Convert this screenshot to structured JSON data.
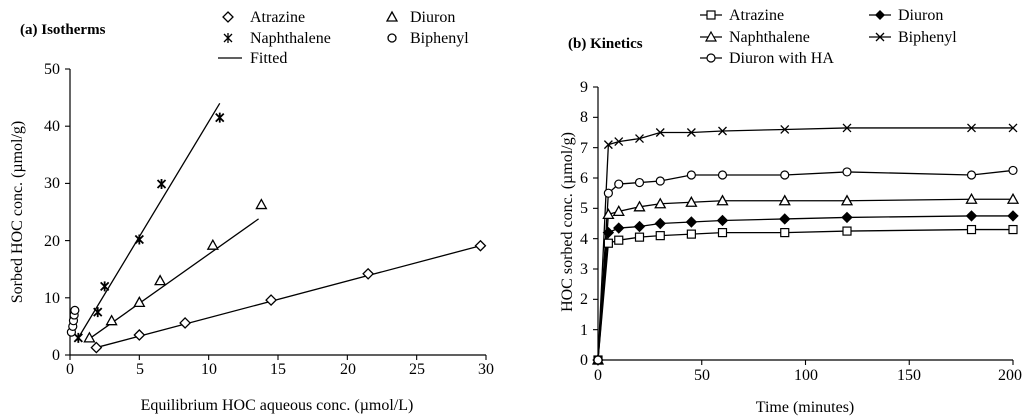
{
  "chart_data": [
    {
      "type": "scatter",
      "title": "(a) Isotherms",
      "xlabel": "Equilibrium HOC aqueous conc. (µmol/L)",
      "ylabel": "Sorbed HOC conc. (µmol/g)",
      "xlim": [
        0,
        30
      ],
      "ylim": [
        0,
        50
      ],
      "xticks": [
        "0",
        "5",
        "10",
        "15",
        "20",
        "25",
        "30"
      ],
      "yticks": [
        "0",
        "10",
        "20",
        "30",
        "40",
        "50"
      ],
      "grid": false,
      "legend_position": "top",
      "series": [
        {
          "name": "Atrazine",
          "marker": "diamond",
          "x": [
            1.9,
            5.0,
            8.3,
            14.5,
            21.5,
            29.6
          ],
          "y": [
            1.3,
            3.5,
            5.6,
            9.6,
            14.2,
            19.1
          ]
        },
        {
          "name": "Diuron",
          "marker": "triangle",
          "x": [
            1.4,
            3.0,
            5.0,
            6.5,
            10.3,
            13.8
          ],
          "y": [
            3.0,
            6.0,
            9.2,
            13.0,
            19.2,
            26.3
          ]
        },
        {
          "name": "Naphthalene",
          "marker": "star",
          "x": [
            0.6,
            2.0,
            2.5,
            5.0,
            6.6,
            10.8
          ],
          "y": [
            3.0,
            7.5,
            12.0,
            20.2,
            29.9,
            41.5
          ]
        },
        {
          "name": "Biphenyl",
          "marker": "circle",
          "x": [
            0.1,
            0.2,
            0.25,
            0.3,
            0.35
          ],
          "y": [
            4.0,
            5.0,
            6.0,
            7.0,
            7.8
          ]
        }
      ],
      "fitted": {
        "name": "Fitted",
        "lines": [
          {
            "x": [
              1.9,
              29.6
            ],
            "y": [
              1.3,
              19.1
            ]
          },
          {
            "x": [
              1.2,
              13.6
            ],
            "y": [
              2.5,
              23.8
            ]
          },
          {
            "x": [
              0.5,
              10.8
            ],
            "y": [
              2.6,
              44.0
            ]
          }
        ]
      }
    },
    {
      "type": "line",
      "title": "(b) Kinetics",
      "xlabel": "Time (minutes)",
      "ylabel": "HOC sorbed conc. (µmol/g)",
      "xlim": [
        0,
        200
      ],
      "ylim": [
        0,
        9
      ],
      "xticks": [
        "0",
        "50",
        "100",
        "150",
        "200"
      ],
      "yticks": [
        "0",
        "1",
        "2",
        "3",
        "4",
        "5",
        "6",
        "7",
        "8",
        "9"
      ],
      "grid": false,
      "legend_position": "top",
      "x": [
        0,
        5,
        10,
        20,
        30,
        45,
        60,
        90,
        120,
        180,
        200
      ],
      "series": [
        {
          "name": "Atrazine",
          "marker": "square",
          "values": [
            0,
            3.85,
            3.95,
            4.05,
            4.1,
            4.15,
            4.2,
            4.2,
            4.25,
            4.3,
            4.3
          ]
        },
        {
          "name": "Diuron",
          "marker": "filled-diamond",
          "values": [
            0,
            4.2,
            4.35,
            4.4,
            4.5,
            4.55,
            4.6,
            4.65,
            4.7,
            4.75,
            4.75
          ]
        },
        {
          "name": "Naphthalene",
          "marker": "triangle",
          "values": [
            0,
            4.8,
            4.9,
            5.05,
            5.15,
            5.2,
            5.25,
            5.25,
            5.25,
            5.3,
            5.3
          ]
        },
        {
          "name": "Biphenyl",
          "marker": "x",
          "values": [
            0,
            7.1,
            7.2,
            7.3,
            7.5,
            7.5,
            7.55,
            7.6,
            7.65,
            7.65,
            7.65
          ]
        },
        {
          "name": "Diuron with HA",
          "marker": "circle",
          "values": [
            0,
            5.5,
            5.8,
            5.85,
            5.9,
            6.1,
            6.1,
            6.1,
            6.2,
            6.1,
            6.25
          ]
        }
      ]
    }
  ]
}
